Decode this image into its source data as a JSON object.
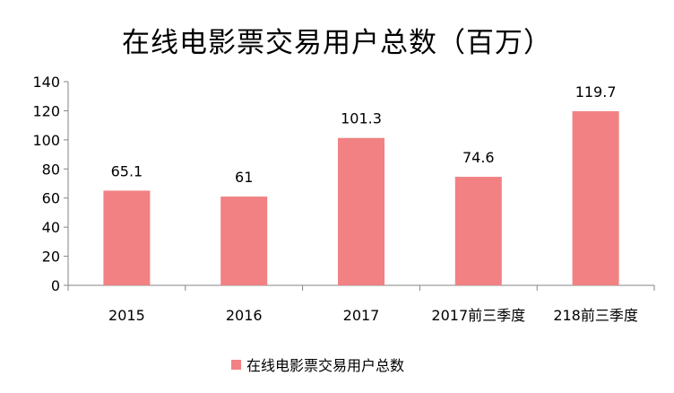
{
  "chart_data": {
    "type": "bar",
    "title": "在线电影票交易用户总数（百万）",
    "categories": [
      "2015",
      "2016",
      "2017",
      "2017前三季度",
      "218前三季度"
    ],
    "series": [
      {
        "name": "在线电影票交易用户总数",
        "values": [
          65.1,
          61,
          101.3,
          74.6,
          119.7
        ],
        "labels": [
          "65.1",
          "61",
          "101.3",
          "74.6",
          "119.7"
        ]
      }
    ],
    "xlabel": "",
    "ylabel": "",
    "ylim": [
      0,
      140
    ],
    "yticks": [
      "0",
      "20",
      "40",
      "60",
      "80",
      "100",
      "120",
      "140"
    ],
    "grid": false,
    "legend": "bottom",
    "bar_color": "#F18183"
  }
}
